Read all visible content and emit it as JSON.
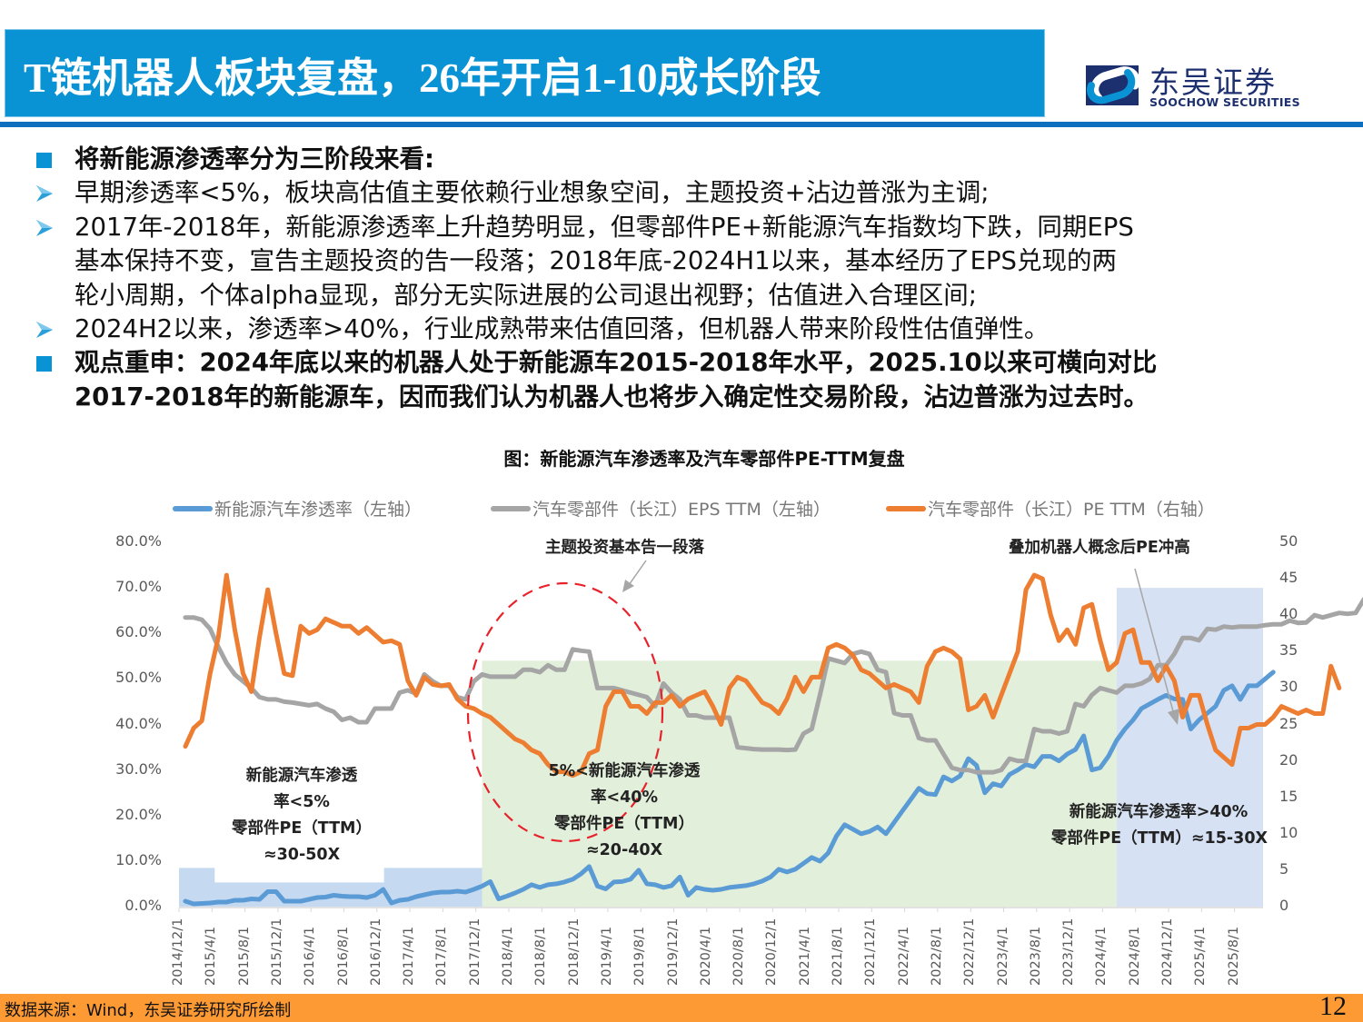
{
  "header": {
    "title": "T链机器人板块复盘，26年开启1-10成长阶段",
    "logo_cn": "东吴证券",
    "logo_en": "SOOCHOW SECURITIES"
  },
  "body": {
    "lines": [
      {
        "type": "square",
        "bold": true,
        "text": "将新能源渗透率分为三阶段来看:"
      },
      {
        "type": "arrow",
        "bold": false,
        "text": "早期渗透率<5%，板块高估值主要依赖行业想象空间，主题投资+沾边普涨为主调;"
      },
      {
        "type": "arrow",
        "bold": false,
        "text": "2017年-2018年，新能源渗透率上升趋势明显，但零部件PE+新能源汽车指数均下跌，同期EPS"
      },
      {
        "type": "none",
        "bold": false,
        "text": "基本保持不变，宣告主题投资的告一段落；2018年底-2024H1以来，基本经历了EPS兑现的两"
      },
      {
        "type": "none",
        "bold": false,
        "text": "轮小周期，个体alpha显现，部分无实际进展的公司退出视野；估值进入合理区间;"
      },
      {
        "type": "arrow",
        "bold": false,
        "text": "2024H2以来，渗透率>40%，行业成熟带来估值回落，但机器人带来阶段性估值弹性。"
      },
      {
        "type": "square",
        "bold": true,
        "text": "观点重申：2024年底以来的机器人处于新能源车2015-2018年水平，2025.10以来可横向对比"
      },
      {
        "type": "none",
        "bold": true,
        "text": "2017-2018年的新能源车，因而我们认为机器人也将步入确定性交易阶段，沾边普涨为过去时。"
      }
    ]
  },
  "figure": {
    "title": "图：新能源汽车渗透率及汽车零部件PE-TTM复盘",
    "annotations": {
      "theme_end": "主题投资基本告一段落",
      "robot_pe": "叠加机器人概念后PE冲高",
      "stage1": [
        "新能源汽车渗透",
        "率<5%",
        "零部件PE（TTM）",
        "≈30-50X"
      ],
      "stage2": [
        "5%<新能源汽车渗透",
        "率<40%",
        "零部件PE（TTM）",
        "≈20-40X"
      ],
      "stage3": [
        "新能源汽车渗透率>40%",
        "零部件PE（TTM）≈15-30X"
      ]
    }
  },
  "chart_data": {
    "type": "line",
    "title": "图：新能源汽车渗透率及汽车零部件PE-TTM复盘",
    "xlabel": "",
    "ylabel_left": "",
    "ylabel_right": "",
    "x_start": "2014/12",
    "x_end": "2025/10",
    "x_frequency": "monthly",
    "x_tick_labels": [
      "2014/12/1",
      "2015/4/1",
      "2015/8/1",
      "2015/12/1",
      "2016/4/1",
      "2016/8/1",
      "2016/12/1",
      "2017/4/1",
      "2017/8/1",
      "2017/12/1",
      "2018/4/1",
      "2018/8/1",
      "2018/12/1",
      "2019/4/1",
      "2019/8/1",
      "2019/12/1",
      "2020/4/1",
      "2020/8/1",
      "2020/12/1",
      "2021/4/1",
      "2021/8/1",
      "2021/12/1",
      "2022/4/1",
      "2022/8/1",
      "2022/12/1",
      "2023/4/1",
      "2023/8/1",
      "2023/12/1",
      "2024/4/1",
      "2024/8/1",
      "2024/12/1",
      "2025/4/1",
      "2025/8/1"
    ],
    "y_left": {
      "ticks": [
        "0.0%",
        "10.0%",
        "20.0%",
        "30.0%",
        "40.0%",
        "50.0%",
        "60.0%",
        "70.0%",
        "80.0%"
      ],
      "range": [
        0,
        80
      ]
    },
    "y_right": {
      "ticks": [
        "0",
        "5",
        "10",
        "15",
        "20",
        "25",
        "30",
        "35",
        "40",
        "45",
        "50"
      ],
      "range": [
        0,
        50
      ]
    },
    "grid": false,
    "legend_position": "top",
    "series": [
      {
        "name": "新能源汽车渗透率（左轴）",
        "axis": "left",
        "color": "#5b9bd5",
        "values": [
          1.2,
          0.6,
          0.7,
          0.8,
          1.0,
          1.0,
          1.4,
          1.4,
          1.7,
          1.6,
          3.3,
          3.3,
          1.2,
          1.2,
          1.2,
          1.6,
          2.0,
          2.1,
          2.5,
          2.3,
          2.2,
          2.2,
          2.0,
          2.5,
          3.8,
          0.8,
          1.4,
          1.6,
          2.2,
          2.6,
          3.0,
          3.2,
          3.2,
          3.4,
          3.2,
          3.8,
          4.5,
          5.5,
          1.7,
          2.3,
          3.0,
          3.8,
          4.8,
          4.2,
          4.8,
          5.0,
          5.4,
          6.0,
          7.2,
          8.8,
          4.5,
          3.9,
          5.4,
          5.5,
          6.0,
          8.0,
          5.0,
          4.8,
          4.2,
          4.6,
          6.5,
          2.5,
          4.2,
          3.8,
          3.6,
          3.8,
          4.2,
          4.4,
          4.6,
          5.0,
          5.6,
          6.5,
          8.2,
          7.6,
          8.2,
          9.5,
          10.8,
          10.0,
          11.8,
          15.5,
          18.0,
          17.0,
          16.0,
          16.5,
          17.5,
          16.0,
          18.5,
          21.0,
          23.5,
          26.0,
          24.8,
          24.6,
          28.5,
          27.6,
          28.7,
          32.5,
          31.0,
          25.0,
          27.0,
          26.5,
          29.0,
          30.0,
          31.2,
          30.7,
          33.0,
          33.0,
          32.0,
          33.5,
          34.5,
          37.5,
          30.0,
          30.5,
          33.0,
          36.5,
          39.0,
          41.0,
          43.5,
          44.5,
          45.5,
          46.4,
          45.6,
          45.5,
          39.0,
          41.0,
          42.5,
          44.0,
          47.5,
          48.5,
          45.5,
          48.5,
          48.5,
          50.0,
          51.5
        ]
      },
      {
        "name": "汽车零部件（长江）EPS TTM（左轴）",
        "axis": "left",
        "color": "#a5a5a5",
        "values": [
          63.5,
          63.5,
          63.0,
          61.0,
          57.0,
          53.5,
          51.0,
          49.5,
          48.0,
          46.0,
          45.5,
          45.5,
          45.0,
          44.8,
          44.5,
          44.2,
          44.5,
          43.5,
          42.8,
          41.0,
          41.5,
          40.5,
          40.5,
          43.5,
          43.5,
          43.5,
          47.0,
          47.5,
          46.8,
          51.0,
          49.5,
          48.5,
          48.5,
          46.0,
          45.5,
          49.5,
          51.0,
          50.5,
          50.5,
          50.5,
          50.5,
          52.0,
          52.0,
          51.5,
          53.0,
          52.0,
          52.0,
          56.5,
          56.2,
          56.0,
          48.0,
          48.0,
          48.0,
          47.5,
          47.0,
          46.5,
          46.0,
          44.0,
          49.0,
          47.0,
          45.5,
          42.0,
          42.0,
          41.5,
          41.5,
          41.5,
          41.5,
          35.0,
          34.8,
          34.6,
          34.5,
          34.5,
          34.5,
          34.4,
          34.5,
          38.0,
          39.0,
          46.5,
          54.5,
          54.0,
          53.5,
          55.5,
          56.0,
          55.5,
          52.0,
          51.5,
          42.5,
          42.0,
          42.0,
          37.0,
          36.5,
          36.5,
          33.5,
          30.5,
          30.0,
          30.0,
          29.5,
          29.5,
          29.5,
          30.0,
          32.5,
          32.0,
          32.0,
          39.0,
          38.5,
          38.5,
          38.0,
          38.5,
          44.5,
          44.0,
          46.5,
          48.0,
          47.5,
          47.0,
          48.5,
          48.5,
          49.0,
          50.0,
          53.0,
          53.0,
          55.5,
          59.0,
          59.0,
          58.5,
          61.0,
          60.8,
          61.5,
          61.3,
          61.5,
          61.5,
          61.5,
          61.8,
          62.0,
          62.0,
          62.8,
          62.3,
          62.4,
          64.0,
          63.5,
          64.0,
          64.5,
          64.3,
          64.5,
          67.5,
          67.0
        ]
      },
      {
        "name": "汽车零部件（长江）PE TTM（右轴）",
        "axis": "right",
        "color": "#ed7d31",
        "values": [
          22.0,
          24.5,
          25.5,
          32.0,
          37.0,
          45.5,
          38.0,
          32.0,
          29.5,
          37.0,
          43.5,
          37.5,
          32.0,
          31.7,
          38.5,
          37.5,
          38.0,
          39.5,
          39.0,
          38.5,
          38.5,
          37.5,
          38.3,
          37.3,
          36.3,
          36.5,
          36.0,
          31.0,
          29.0,
          31.5,
          30.5,
          30.3,
          30.5,
          28.5,
          27.5,
          27.2,
          26.5,
          26.0,
          25.0,
          24.0,
          23.0,
          22.5,
          21.5,
          21.0,
          19.5,
          18.5,
          18.5,
          18.0,
          18.5,
          21.0,
          21.5,
          27.5,
          29.5,
          29.5,
          27.5,
          27.5,
          26.5,
          28.0,
          28.0,
          29.0,
          27.5,
          28.5,
          29.0,
          29.5,
          27.5,
          25.0,
          30.0,
          31.5,
          31.0,
          29.5,
          28.0,
          27.5,
          26.5,
          28.5,
          31.5,
          29.5,
          31.5,
          31.5,
          35.5,
          36.0,
          35.5,
          34.5,
          32.5,
          32.0,
          31.0,
          30.0,
          30.5,
          30.0,
          29.5,
          28.0,
          33.0,
          35.0,
          35.5,
          35.0,
          34.0,
          27.0,
          27.5,
          29.0,
          26.0,
          29.0,
          32.0,
          35.0,
          43.5,
          45.5,
          45.0,
          40.0,
          36.5,
          38.0,
          36.0,
          41.0,
          41.5,
          36.5,
          32.5,
          33.5,
          37.5,
          38.0,
          33.5,
          33.5,
          31.0,
          33.0,
          31.0,
          26.0,
          29.0,
          29.0,
          25.0,
          21.5,
          20.5,
          19.5,
          24.5,
          24.5,
          25.0,
          25.0,
          26.0,
          27.5,
          27.0,
          26.5,
          27.0,
          26.5,
          26.5,
          33.0,
          30.0
        ]
      }
    ],
    "shaded_regions": [
      {
        "label": "stage1",
        "color": "#c5d9f1",
        "from": "2014/12",
        "to": "2017/12",
        "height_pct": 8.5,
        "note": "with notch 2015/4-2016/12 lower height ~5%"
      },
      {
        "label": "stage2",
        "color": "#e2efda",
        "from": "2017/12",
        "to": "2024/5",
        "height_pct": 54
      },
      {
        "label": "stage3",
        "color": "#c5d9f1",
        "from": "2024/5",
        "to": "2025/10",
        "height_pct": 70
      }
    ]
  },
  "footer": {
    "source": "数据来源：Wind，东吴证券研究所绘制",
    "page": "12"
  }
}
